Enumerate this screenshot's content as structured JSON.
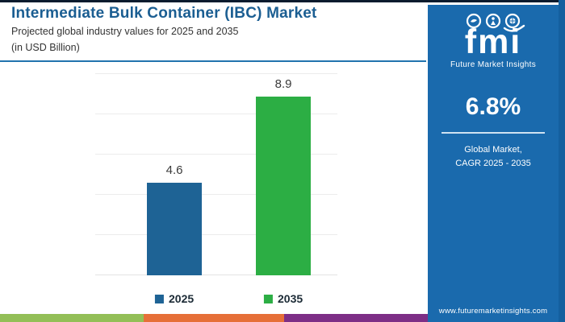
{
  "header": {
    "title": "Intermediate Bulk Container (IBC) Market",
    "subtitle": "Projected global industry values for 2025 and 2035",
    "unit_note": "(in USD Billion)"
  },
  "chart_data": {
    "type": "bar",
    "categories": [
      "2025",
      "2035"
    ],
    "values": [
      4.6,
      8.9
    ],
    "data_labels": [
      "4.6",
      "8.9"
    ],
    "title": "Intermediate Bulk Container (IBC) Market",
    "subtitle": "Projected global industry values for 2025 and 2035 (in USD Billion)",
    "xlabel": "",
    "ylabel": "",
    "ylim": [
      0,
      10
    ],
    "gridline_values": [
      0,
      2,
      4,
      6,
      8,
      10
    ],
    "grid": "horizontal",
    "legend_position": "bottom",
    "series_colors": [
      "#1e6395",
      "#2cae44"
    ],
    "legend": [
      {
        "label": "2025",
        "color": "#1e6395"
      },
      {
        "label": "2035",
        "color": "#2cae44"
      }
    ]
  },
  "sidebar": {
    "logo": {
      "text": "fmi",
      "tagline": "Future Market Insights",
      "icons": [
        "dove-icon",
        "person-icon",
        "globe-icon"
      ]
    },
    "cagr": {
      "value": "6.8%",
      "label_line1": "Global Market,",
      "label_line2": "CAGR 2025 - 2035"
    },
    "website": "www.futuremarketinsights.com"
  },
  "footer": {
    "stripe_colors": [
      "#93bf57",
      "#e66f38",
      "#7d2e86"
    ],
    "stripe_widths": [
      178,
      174,
      178
    ]
  },
  "colors": {
    "title_blue": "#1b5e92",
    "header_rule": "#2173ae",
    "panel_blue": "#1a6aad",
    "panel_edge": "#14609f",
    "top_border": "#0b1b2e",
    "bar_2025": "#1e6395",
    "bar_2035": "#2cae44"
  }
}
